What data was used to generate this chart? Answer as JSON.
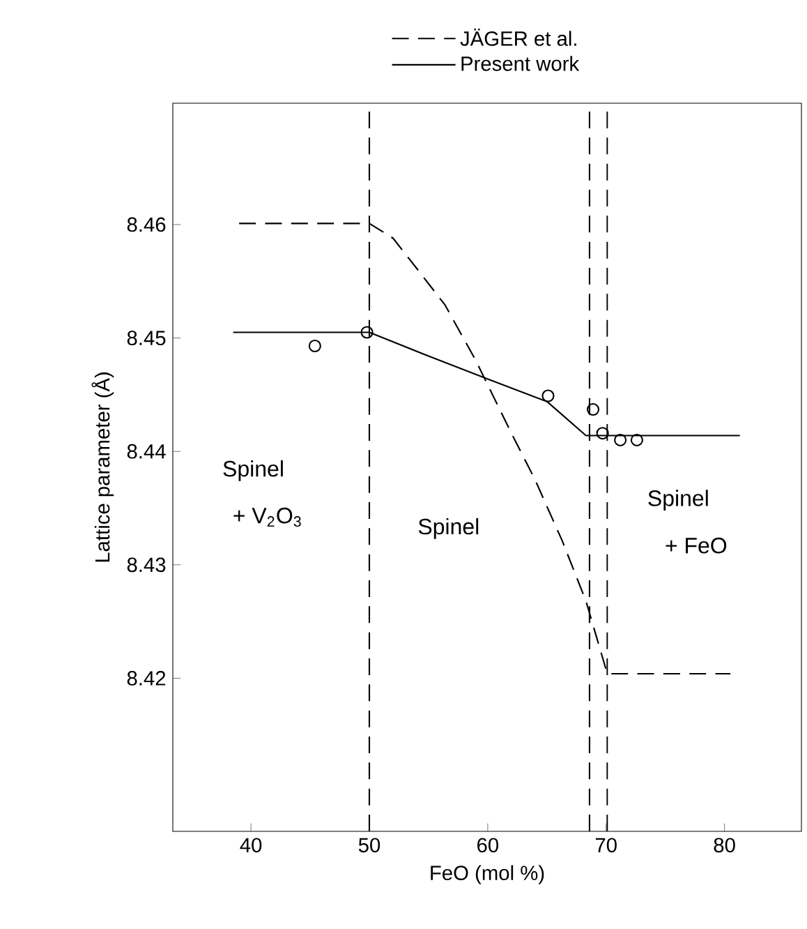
{
  "chart_data": {
    "type": "line",
    "xlabel": "FeO (mol %)",
    "ylabel": "Lattice parameter  (Å)",
    "xlim": [
      33.4,
      86.5
    ],
    "ylim": [
      8.4065,
      8.4707
    ],
    "xticks": [
      40,
      50,
      60,
      70,
      80
    ],
    "yticks": [
      8.42,
      8.43,
      8.44,
      8.45,
      8.46
    ],
    "legend": "top",
    "grid": false,
    "series": [
      {
        "name": "JÄGER et al.",
        "color": "#000000",
        "line_style": "dashed",
        "x": [
          39,
          50,
          52,
          54.1,
          56.4,
          59,
          62,
          64,
          66.3,
          68.3,
          70.1,
          80.5
        ],
        "values": [
          8.4601,
          8.4601,
          8.4588,
          8.456,
          8.4529,
          8.448,
          8.4416,
          8.4375,
          8.4321,
          8.4268,
          8.4204,
          8.4204
        ]
      },
      {
        "name": "Present work",
        "color": "#000000",
        "line_style": "solid",
        "x": [
          38.5,
          50,
          55,
          60.2,
          65,
          68.3,
          81.3
        ],
        "values": [
          8.4505,
          8.4505,
          8.4484,
          8.4463,
          8.4444,
          8.4414,
          8.4414
        ]
      },
      {
        "type": "scatter",
        "marker": "circle",
        "color": "#000000",
        "x": [
          45.4,
          49.8,
          65.1,
          68.9,
          69.7,
          71.2,
          72.6
        ],
        "values": [
          8.4493,
          8.4505,
          8.4449,
          8.4437,
          8.4416,
          8.441,
          8.441
        ]
      }
    ],
    "ref_lines": [
      {
        "axis": "x",
        "value": 50,
        "line_style": "dashed"
      },
      {
        "axis": "x",
        "value": 68.6,
        "line_style": "dashed"
      },
      {
        "axis": "x",
        "value": 70.1,
        "line_style": "dashed"
      }
    ],
    "annotations": [
      "Spinel",
      "+ V$_{2}$O$_{3}$",
      "Spinel",
      "Spinel",
      "+ FeO"
    ]
  }
}
